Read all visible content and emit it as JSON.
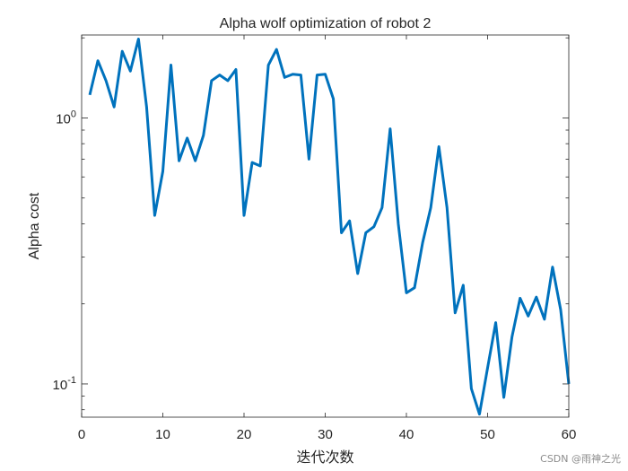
{
  "chart_data": {
    "type": "line",
    "title": "Alpha wolf optimization of robot 2",
    "xlabel": "迭代次数",
    "ylabel": "Alpha cost",
    "xlim": [
      0,
      60
    ],
    "ylim": [
      0.075,
      2.05
    ],
    "yscale": "log",
    "grid": false,
    "x_ticks": [
      0,
      10,
      20,
      30,
      40,
      50,
      60
    ],
    "y_ticks": [
      {
        "value": 1,
        "base": "10",
        "exp": "0"
      },
      {
        "value": 0.1,
        "base": "10",
        "exp": "-1"
      }
    ],
    "series": [
      {
        "name": "Alpha cost",
        "color": "#0072bd",
        "x": [
          1,
          2,
          3,
          4,
          5,
          6,
          7,
          8,
          9,
          10,
          11,
          12,
          13,
          14,
          15,
          16,
          17,
          18,
          19,
          20,
          21,
          22,
          23,
          24,
          25,
          26,
          27,
          28,
          29,
          30,
          31,
          32,
          33,
          34,
          35,
          36,
          37,
          38,
          39,
          40,
          41,
          42,
          43,
          44,
          45,
          46,
          47,
          48,
          49,
          50,
          51,
          52,
          53,
          54,
          55,
          56,
          57,
          58,
          59,
          60
        ],
        "values": [
          1.22,
          1.64,
          1.38,
          1.1,
          1.78,
          1.5,
          1.98,
          1.1,
          0.43,
          0.63,
          1.58,
          0.69,
          0.84,
          0.69,
          0.86,
          1.38,
          1.45,
          1.38,
          1.52,
          0.43,
          0.68,
          0.66,
          1.58,
          1.81,
          1.42,
          1.46,
          1.45,
          0.7,
          1.45,
          1.46,
          1.18,
          0.37,
          0.41,
          0.26,
          0.37,
          0.39,
          0.46,
          0.91,
          0.4,
          0.22,
          0.23,
          0.34,
          0.46,
          0.78,
          0.46,
          0.185,
          0.235,
          0.096,
          0.077,
          0.115,
          0.17,
          0.089,
          0.15,
          0.21,
          0.18,
          0.212,
          0.175,
          0.275,
          0.19,
          0.1
        ]
      }
    ]
  },
  "watermark": "CSDN @雨神之光"
}
